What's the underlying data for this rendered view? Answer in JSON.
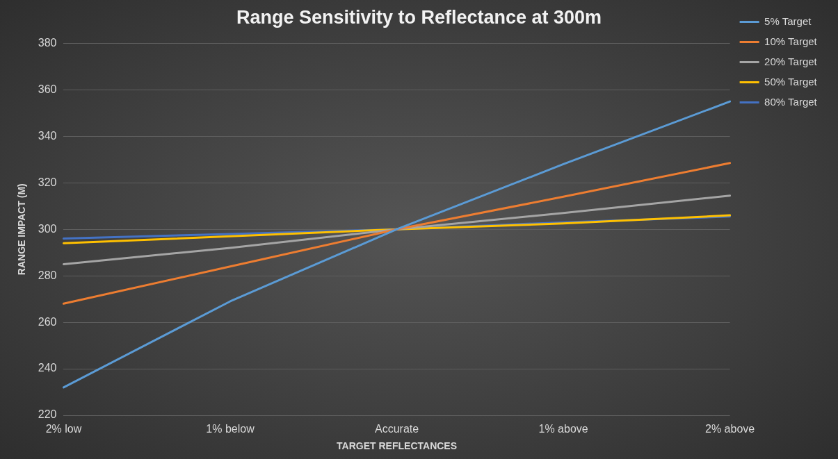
{
  "chart_data": {
    "type": "line",
    "title": "Range Sensitivity to Reflectance at 300m",
    "xlabel": "TARGET REFLECTANCES",
    "ylabel": "RANGE IMPACT (M)",
    "categories": [
      "2% low",
      "1% below",
      "Accurate",
      "1% above",
      "2% above"
    ],
    "series": [
      {
        "name": "5% Target",
        "color": "#5b9bd5",
        "values": [
          232,
          269,
          300,
          328,
          355
        ]
      },
      {
        "name": "10% Target",
        "color": "#ed7d31",
        "values": [
          268,
          284,
          300,
          314,
          328.5
        ]
      },
      {
        "name": "20% Target",
        "color": "#a5a5a5",
        "values": [
          285,
          292,
          300,
          307,
          314.5
        ]
      },
      {
        "name": "50% Target",
        "color": "#ffc000",
        "values": [
          294,
          297,
          300,
          302.5,
          306
        ]
      },
      {
        "name": "80% Target",
        "color": "#4472c4",
        "values": [
          296,
          298,
          300,
          303,
          305.5
        ]
      }
    ],
    "ylim": [
      220,
      380
    ],
    "yticks": [
      220,
      240,
      260,
      280,
      300,
      320,
      340,
      360,
      380
    ],
    "grid": "y",
    "legend": "right",
    "marker": "none",
    "line_style": "solid"
  }
}
